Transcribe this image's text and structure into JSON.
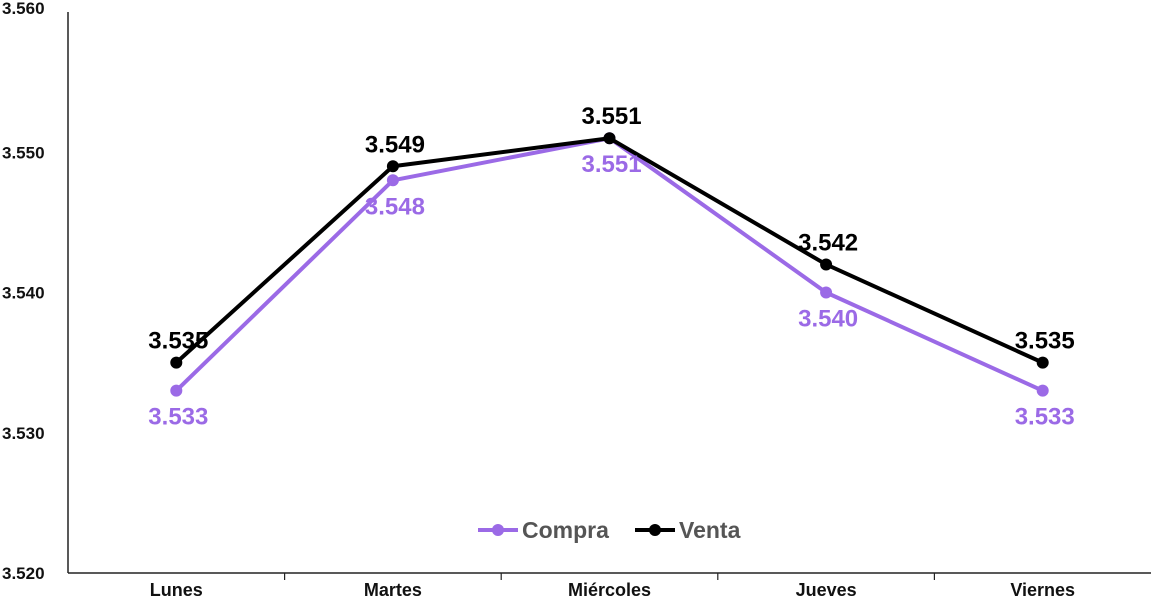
{
  "chart_data": {
    "type": "line",
    "categories": [
      "Lunes",
      "Martes",
      "Miércoles",
      "Jueves",
      "Viernes"
    ],
    "series": [
      {
        "name": "Compra",
        "color": "#9b6ae6",
        "values": [
          3.533,
          3.548,
          3.551,
          3.54,
          3.533
        ],
        "labels": [
          "3.533",
          "3.548",
          "3.551",
          "3.540",
          "3.533"
        ],
        "label_position": "below"
      },
      {
        "name": "Venta",
        "color": "#000000",
        "values": [
          3.535,
          3.549,
          3.551,
          3.542,
          3.535
        ],
        "labels": [
          "3.535",
          "3.549",
          "3.551",
          "3.542",
          "3.535"
        ],
        "label_position": "above"
      }
    ],
    "ylim": [
      3.52,
      3.56
    ],
    "yticks": [
      3.52,
      3.53,
      3.54,
      3.55,
      3.56
    ],
    "ytick_labels": [
      "3.520",
      "3.530",
      "3.540",
      "3.550",
      "3.560"
    ],
    "grid": false,
    "legend": "bottom-center"
  }
}
